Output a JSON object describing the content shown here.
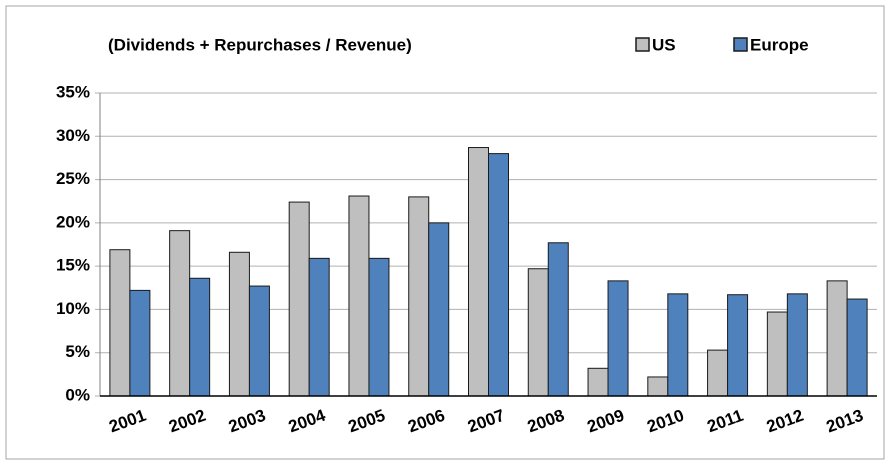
{
  "chart_data": {
    "type": "bar",
    "title": "(Dividends + Repurchases / Revenue)",
    "categories": [
      "2001",
      "2002",
      "2003",
      "2004",
      "2005",
      "2006",
      "2007",
      "2008",
      "2009",
      "2010",
      "2011",
      "2012",
      "2013"
    ],
    "series": [
      {
        "name": "US",
        "color": "#bfbfbf",
        "values": [
          16.9,
          19.1,
          16.6,
          22.4,
          23.1,
          23.0,
          28.7,
          14.7,
          3.2,
          2.2,
          5.3,
          9.7,
          13.3
        ]
      },
      {
        "name": "Europe",
        "color": "#4f81bd",
        "values": [
          12.2,
          13.6,
          12.7,
          15.9,
          15.9,
          20.0,
          28.0,
          17.7,
          13.3,
          11.8,
          11.7,
          11.8,
          11.2
        ]
      }
    ],
    "ylim": [
      0,
      35
    ],
    "yticks": [
      {
        "value": 0,
        "label": "0%"
      },
      {
        "value": 5,
        "label": "5%"
      },
      {
        "value": 10,
        "label": "10%"
      },
      {
        "value": 15,
        "label": "15%"
      },
      {
        "value": 20,
        "label": "20%"
      },
      {
        "value": 25,
        "label": "25%"
      },
      {
        "value": 30,
        "label": "30%"
      },
      {
        "value": 35,
        "label": "35%"
      }
    ],
    "grid": true
  }
}
